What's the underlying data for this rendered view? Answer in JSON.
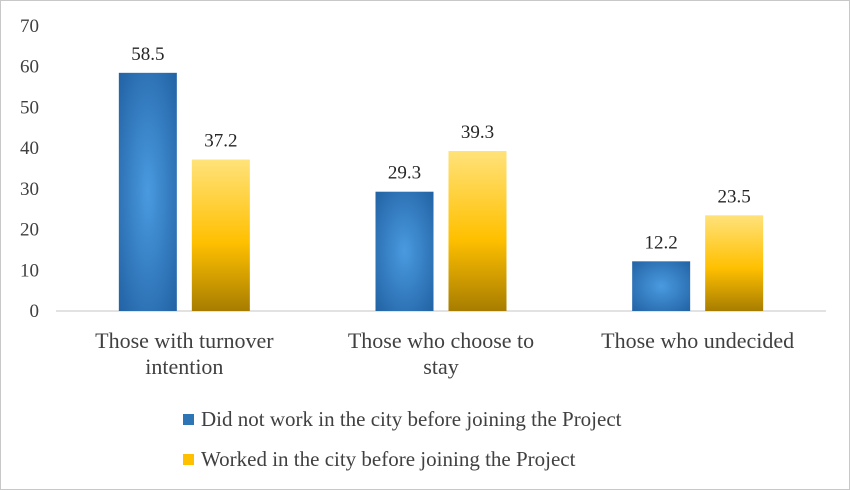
{
  "chart_data": {
    "type": "bar",
    "title": "",
    "xlabel": "",
    "ylabel": "",
    "ylim": [
      0,
      70
    ],
    "yticks": [
      0,
      10,
      20,
      30,
      40,
      50,
      60,
      70
    ],
    "categories": [
      [
        "Those with turnover",
        "intention"
      ],
      [
        "Those who choose to",
        "stay"
      ],
      [
        "Those who undecided"
      ]
    ],
    "series": [
      {
        "name": "Did not work in the city before joining the Project",
        "values": [
          58.5,
          29.3,
          12.2
        ],
        "color": "#2E75B6"
      },
      {
        "name": "Worked in the city before joining the Project",
        "values": [
          37.2,
          39.3,
          23.5
        ],
        "color": "#FFC000"
      }
    ],
    "data_labels": [
      [
        "58.5",
        "29.3",
        "12.2"
      ],
      [
        "37.2",
        "39.3",
        "23.5"
      ]
    ],
    "grid": false,
    "legend_position": "bottom"
  }
}
